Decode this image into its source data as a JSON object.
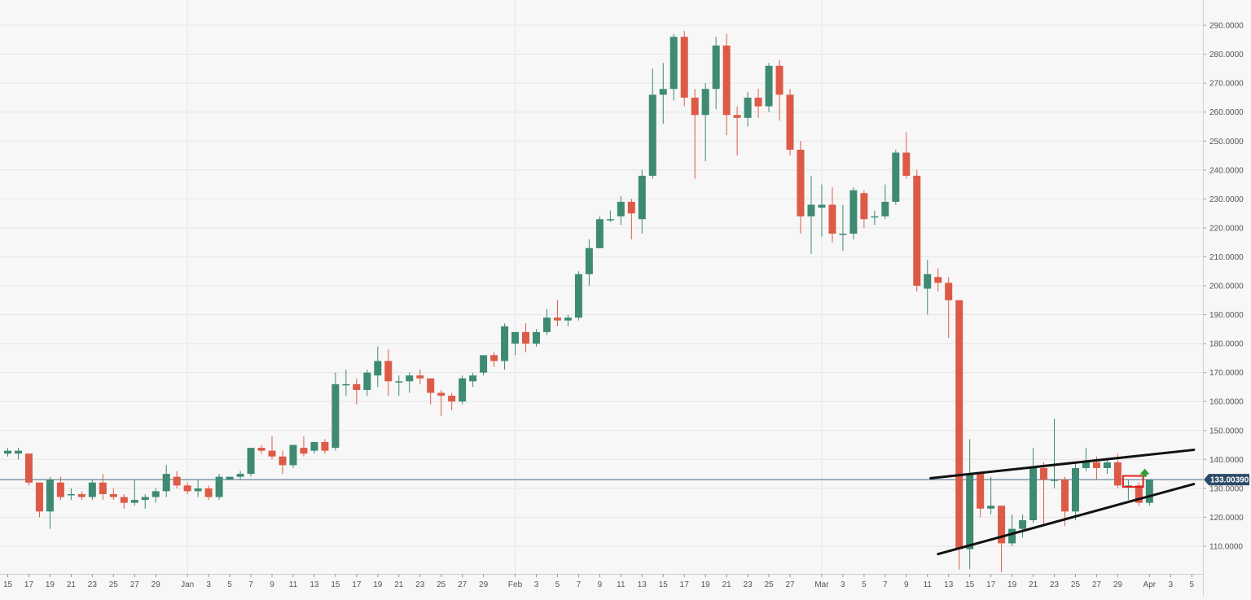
{
  "chart_data": {
    "type": "candlestick",
    "y_range": [
      100,
      295
    ],
    "y_ticks": [
      {
        "value": 110,
        "label": "110.0000"
      },
      {
        "value": 120,
        "label": "120.0000"
      },
      {
        "value": 130,
        "label": "130.0000"
      },
      {
        "value": 140,
        "label": "140.0000"
      },
      {
        "value": 150,
        "label": "150.0000"
      },
      {
        "value": 160,
        "label": "160.0000"
      },
      {
        "value": 170,
        "label": "170.0000"
      },
      {
        "value": 180,
        "label": "180.0000"
      },
      {
        "value": 190,
        "label": "190.0000"
      },
      {
        "value": 200,
        "label": "200.0000"
      },
      {
        "value": 210,
        "label": "210.0000"
      },
      {
        "value": 220,
        "label": "220.0000"
      },
      {
        "value": 230,
        "label": "230.0000"
      },
      {
        "value": 240,
        "label": "240.0000"
      },
      {
        "value": 250,
        "label": "250.0000"
      },
      {
        "value": 260,
        "label": "260.0000"
      },
      {
        "value": 270,
        "label": "270.0000"
      },
      {
        "value": 280,
        "label": "280.0000"
      },
      {
        "value": 290,
        "label": "290.0000"
      }
    ],
    "x_ticks": [
      {
        "i": 0,
        "label": "15"
      },
      {
        "i": 2,
        "label": "17"
      },
      {
        "i": 4,
        "label": "19"
      },
      {
        "i": 6,
        "label": "21"
      },
      {
        "i": 8,
        "label": "23"
      },
      {
        "i": 10,
        "label": "25"
      },
      {
        "i": 12,
        "label": "27"
      },
      {
        "i": 14,
        "label": "29"
      },
      {
        "i": 17,
        "label": "Jan"
      },
      {
        "i": 19,
        "label": "3"
      },
      {
        "i": 21,
        "label": "5"
      },
      {
        "i": 23,
        "label": "7"
      },
      {
        "i": 25,
        "label": "9"
      },
      {
        "i": 27,
        "label": "11"
      },
      {
        "i": 29,
        "label": "13"
      },
      {
        "i": 31,
        "label": "15"
      },
      {
        "i": 33,
        "label": "17"
      },
      {
        "i": 35,
        "label": "19"
      },
      {
        "i": 37,
        "label": "21"
      },
      {
        "i": 39,
        "label": "23"
      },
      {
        "i": 41,
        "label": "25"
      },
      {
        "i": 43,
        "label": "27"
      },
      {
        "i": 45,
        "label": "29"
      },
      {
        "i": 48,
        "label": "Feb"
      },
      {
        "i": 50,
        "label": "3"
      },
      {
        "i": 52,
        "label": "5"
      },
      {
        "i": 54,
        "label": "7"
      },
      {
        "i": 56,
        "label": "9"
      },
      {
        "i": 58,
        "label": "11"
      },
      {
        "i": 60,
        "label": "13"
      },
      {
        "i": 62,
        "label": "15"
      },
      {
        "i": 64,
        "label": "17"
      },
      {
        "i": 66,
        "label": "19"
      },
      {
        "i": 68,
        "label": "21"
      },
      {
        "i": 70,
        "label": "23"
      },
      {
        "i": 72,
        "label": "25"
      },
      {
        "i": 74,
        "label": "27"
      },
      {
        "i": 77,
        "label": "Mar"
      },
      {
        "i": 79,
        "label": "3"
      },
      {
        "i": 81,
        "label": "5"
      },
      {
        "i": 83,
        "label": "7"
      },
      {
        "i": 85,
        "label": "9"
      },
      {
        "i": 87,
        "label": "11"
      },
      {
        "i": 89,
        "label": "13"
      },
      {
        "i": 91,
        "label": "15"
      },
      {
        "i": 93,
        "label": "17"
      },
      {
        "i": 95,
        "label": "19"
      },
      {
        "i": 97,
        "label": "21"
      },
      {
        "i": 99,
        "label": "23"
      },
      {
        "i": 101,
        "label": "25"
      },
      {
        "i": 103,
        "label": "27"
      },
      {
        "i": 105,
        "label": "29"
      },
      {
        "i": 108,
        "label": "Apr"
      },
      {
        "i": 110,
        "label": "3"
      },
      {
        "i": 112,
        "label": "5"
      }
    ],
    "x_gridlines": [
      17,
      48,
      77
    ],
    "x_index_range": [
      0,
      112
    ],
    "current_price": {
      "value": 133.0039,
      "label": "133.00390"
    },
    "colors": {
      "bull": "#3e8a73",
      "bear": "#dd5a47",
      "trendline": "#111111",
      "price_line": "#4a6a86",
      "price_tag": "#2d4a66",
      "grid": "#e6e6e6",
      "background": "#f7f7f7",
      "marker_box": "#e02020",
      "marker_arrow": "#2ca02c"
    },
    "candles": [
      {
        "o": 142,
        "h": 144,
        "l": 141,
        "c": 143
      },
      {
        "o": 142,
        "h": 144,
        "l": 140,
        "c": 143
      },
      {
        "o": 142,
        "h": 142,
        "l": 131,
        "c": 132
      },
      {
        "o": 132,
        "h": 132,
        "l": 120,
        "c": 122
      },
      {
        "o": 122,
        "h": 134,
        "l": 116,
        "c": 133
      },
      {
        "o": 132,
        "h": 134,
        "l": 126,
        "c": 127
      },
      {
        "o": 128,
        "h": 130,
        "l": 126,
        "c": 128
      },
      {
        "o": 128,
        "h": 129,
        "l": 126,
        "c": 127
      },
      {
        "o": 127,
        "h": 133,
        "l": 126,
        "c": 132
      },
      {
        "o": 132,
        "h": 135,
        "l": 126,
        "c": 128
      },
      {
        "o": 128,
        "h": 130,
        "l": 126,
        "c": 127
      },
      {
        "o": 127,
        "h": 128,
        "l": 123,
        "c": 125
      },
      {
        "o": 125,
        "h": 133,
        "l": 124,
        "c": 126
      },
      {
        "o": 126,
        "h": 128,
        "l": 123,
        "c": 127
      },
      {
        "o": 127,
        "h": 130,
        "l": 125,
        "c": 129
      },
      {
        "o": 129,
        "h": 138,
        "l": 127,
        "c": 135
      },
      {
        "o": 134,
        "h": 136,
        "l": 130,
        "c": 131
      },
      {
        "o": 131,
        "h": 132,
        "l": 128,
        "c": 129
      },
      {
        "o": 129,
        "h": 133,
        "l": 127,
        "c": 130
      },
      {
        "o": 130,
        "h": 131,
        "l": 126,
        "c": 127
      },
      {
        "o": 127,
        "h": 135,
        "l": 126,
        "c": 134
      },
      {
        "o": 133,
        "h": 134,
        "l": 133,
        "c": 134
      },
      {
        "o": 134,
        "h": 136,
        "l": 133,
        "c": 135
      },
      {
        "o": 135,
        "h": 144,
        "l": 134,
        "c": 144
      },
      {
        "o": 144,
        "h": 145,
        "l": 142,
        "c": 143
      },
      {
        "o": 143,
        "h": 148,
        "l": 140,
        "c": 141
      },
      {
        "o": 141,
        "h": 143,
        "l": 135,
        "c": 138
      },
      {
        "o": 138,
        "h": 145,
        "l": 137,
        "c": 145
      },
      {
        "o": 144,
        "h": 148,
        "l": 141,
        "c": 142
      },
      {
        "o": 143,
        "h": 146,
        "l": 142,
        "c": 146
      },
      {
        "o": 146,
        "h": 147,
        "l": 142,
        "c": 143
      },
      {
        "o": 144,
        "h": 170,
        "l": 143,
        "c": 166
      },
      {
        "o": 166,
        "h": 171,
        "l": 162,
        "c": 166
      },
      {
        "o": 166,
        "h": 168,
        "l": 159,
        "c": 164
      },
      {
        "o": 164,
        "h": 171,
        "l": 162,
        "c": 170
      },
      {
        "o": 169,
        "h": 179,
        "l": 165,
        "c": 174
      },
      {
        "o": 174,
        "h": 178,
        "l": 162,
        "c": 167
      },
      {
        "o": 167,
        "h": 169,
        "l": 162,
        "c": 167
      },
      {
        "o": 167,
        "h": 170,
        "l": 163,
        "c": 169
      },
      {
        "o": 169,
        "h": 171,
        "l": 166,
        "c": 168
      },
      {
        "o": 168,
        "h": 168,
        "l": 159,
        "c": 163
      },
      {
        "o": 163,
        "h": 164,
        "l": 155,
        "c": 162
      },
      {
        "o": 162,
        "h": 163,
        "l": 157,
        "c": 160
      },
      {
        "o": 160,
        "h": 169,
        "l": 159,
        "c": 168
      },
      {
        "o": 167,
        "h": 170,
        "l": 165,
        "c": 169
      },
      {
        "o": 170,
        "h": 176,
        "l": 169,
        "c": 176
      },
      {
        "o": 176,
        "h": 177,
        "l": 172,
        "c": 174
      },
      {
        "o": 174,
        "h": 187,
        "l": 171,
        "c": 186
      },
      {
        "o": 180,
        "h": 184,
        "l": 176,
        "c": 184
      },
      {
        "o": 184,
        "h": 187,
        "l": 177,
        "c": 180
      },
      {
        "o": 180,
        "h": 185,
        "l": 179,
        "c": 184
      },
      {
        "o": 184,
        "h": 192,
        "l": 183,
        "c": 189
      },
      {
        "o": 189,
        "h": 195,
        "l": 186,
        "c": 188
      },
      {
        "o": 188,
        "h": 190,
        "l": 186,
        "c": 189
      },
      {
        "o": 189,
        "h": 205,
        "l": 188,
        "c": 204
      },
      {
        "o": 204,
        "h": 216,
        "l": 200,
        "c": 213
      },
      {
        "o": 213,
        "h": 224,
        "l": 213,
        "c": 223
      },
      {
        "o": 223,
        "h": 226,
        "l": 222,
        "c": 223
      },
      {
        "o": 224,
        "h": 231,
        "l": 221,
        "c": 229
      },
      {
        "o": 229,
        "h": 230,
        "l": 216,
        "c": 225
      },
      {
        "o": 223,
        "h": 240,
        "l": 218,
        "c": 238
      },
      {
        "o": 238,
        "h": 275,
        "l": 237,
        "c": 266
      },
      {
        "o": 266,
        "h": 277,
        "l": 256,
        "c": 268
      },
      {
        "o": 268,
        "h": 287,
        "l": 264,
        "c": 286
      },
      {
        "o": 286,
        "h": 288,
        "l": 262,
        "c": 265
      },
      {
        "o": 265,
        "h": 268,
        "l": 237,
        "c": 259
      },
      {
        "o": 259,
        "h": 270,
        "l": 243,
        "c": 268
      },
      {
        "o": 268,
        "h": 286,
        "l": 261,
        "c": 283
      },
      {
        "o": 283,
        "h": 287,
        "l": 252,
        "c": 259
      },
      {
        "o": 259,
        "h": 262,
        "l": 245,
        "c": 258
      },
      {
        "o": 258,
        "h": 267,
        "l": 255,
        "c": 265
      },
      {
        "o": 265,
        "h": 268,
        "l": 258,
        "c": 262
      },
      {
        "o": 262,
        "h": 277,
        "l": 260,
        "c": 276
      },
      {
        "o": 276,
        "h": 278,
        "l": 257,
        "c": 266
      },
      {
        "o": 266,
        "h": 268,
        "l": 245,
        "c": 247
      },
      {
        "o": 247,
        "h": 250,
        "l": 218,
        "c": 224
      },
      {
        "o": 224,
        "h": 238,
        "l": 211,
        "c": 228
      },
      {
        "o": 227,
        "h": 235,
        "l": 217,
        "c": 228
      },
      {
        "o": 228,
        "h": 234,
        "l": 215,
        "c": 218
      },
      {
        "o": 218,
        "h": 228,
        "l": 212,
        "c": 218
      },
      {
        "o": 218,
        "h": 234,
        "l": 216,
        "c": 233
      },
      {
        "o": 232,
        "h": 233,
        "l": 220,
        "c": 223
      },
      {
        "o": 224,
        "h": 226,
        "l": 221,
        "c": 224
      },
      {
        "o": 224,
        "h": 235,
        "l": 223,
        "c": 229
      },
      {
        "o": 229,
        "h": 247,
        "l": 228,
        "c": 246
      },
      {
        "o": 246,
        "h": 253,
        "l": 237,
        "c": 238
      },
      {
        "o": 238,
        "h": 240,
        "l": 198,
        "c": 200
      },
      {
        "o": 199,
        "h": 209,
        "l": 190,
        "c": 204
      },
      {
        "o": 203,
        "h": 206,
        "l": 198,
        "c": 201
      },
      {
        "o": 201,
        "h": 203,
        "l": 182,
        "c": 195
      },
      {
        "o": 195,
        "h": 195,
        "l": 102,
        "c": 109
      },
      {
        "o": 109,
        "h": 147,
        "l": 102,
        "c": 135
      },
      {
        "o": 135,
        "h": 135,
        "l": 120,
        "c": 123
      },
      {
        "o": 123,
        "h": 134,
        "l": 121,
        "c": 124
      },
      {
        "o": 124,
        "h": 124,
        "l": 101,
        "c": 111
      },
      {
        "o": 111,
        "h": 121,
        "l": 110,
        "c": 116
      },
      {
        "o": 116,
        "h": 121,
        "l": 113,
        "c": 119
      },
      {
        "o": 119,
        "h": 144,
        "l": 118,
        "c": 137
      },
      {
        "o": 137,
        "h": 139,
        "l": 117,
        "c": 133
      },
      {
        "o": 133,
        "h": 154,
        "l": 130,
        "c": 133
      },
      {
        "o": 133,
        "h": 134,
        "l": 117,
        "c": 122
      },
      {
        "o": 122,
        "h": 139,
        "l": 119,
        "c": 137
      },
      {
        "o": 137,
        "h": 144,
        "l": 136,
        "c": 139
      },
      {
        "o": 139,
        "h": 141,
        "l": 133,
        "c": 137
      },
      {
        "o": 137,
        "h": 140,
        "l": 135,
        "c": 139
      },
      {
        "o": 139,
        "h": 142,
        "l": 130,
        "c": 131
      },
      {
        "o": 131,
        "h": 133,
        "l": 126,
        "c": 131
      },
      {
        "o": 131,
        "h": 132,
        "l": 124,
        "c": 125
      },
      {
        "o": 125,
        "h": 133,
        "l": 124,
        "c": 133
      }
    ],
    "trendlines": [
      {
        "from": {
          "i": 87.3,
          "v": 133.5
        },
        "to": {
          "i": 112.2,
          "v": 143.3
        }
      },
      {
        "from": {
          "i": 88.0,
          "v": 107.3
        },
        "to": {
          "i": 112.2,
          "v": 131.5
        }
      }
    ],
    "marker": {
      "i_from": 105.5,
      "i_to": 107.4,
      "v_low": 130.5,
      "v_high": 134.3
    }
  }
}
